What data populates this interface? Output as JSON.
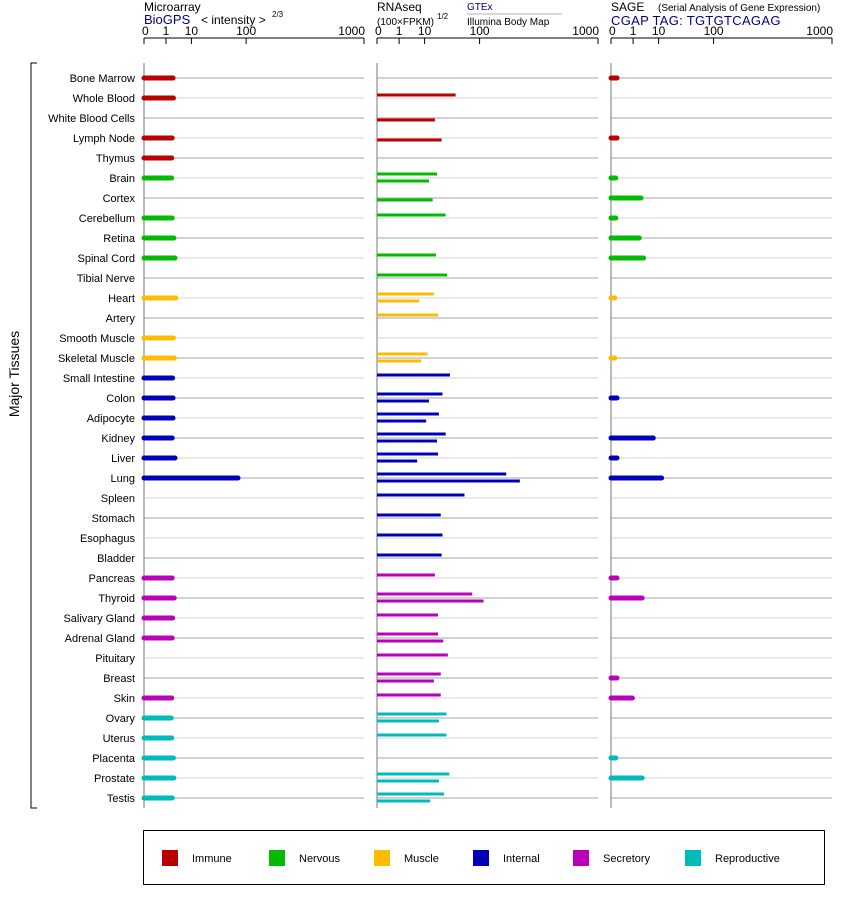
{
  "chart_data": {
    "type": "bar",
    "side_label": "Major Tissues",
    "colors": {
      "immune": "#bb0000",
      "nervous": "#00bb00",
      "muscle": "#ffbb00",
      "internal": "#0000bb",
      "secretory": "#bb00bb",
      "reproductive": "#00bbbb",
      "heading_blue": "#00008b"
    },
    "panels": [
      {
        "key": "microarray",
        "title": "Microarray",
        "subtitle_left": "BioGPS",
        "subtitle_right": "< intensity >",
        "exponent": "2/3",
        "tick_labels": [
          "0",
          "1",
          "10",
          "100",
          "1000"
        ],
        "xlim": [
          0,
          1000
        ]
      },
      {
        "key": "rnaseq",
        "title": "RNAseq",
        "unit": "(100×FPKM)",
        "exponent": "1/2",
        "legend_top": "GTEx",
        "legend_bottom": "Illumina Body Map",
        "tick_labels": [
          "0",
          "1",
          "10",
          "100",
          "1000"
        ],
        "xlim": [
          0,
          1000
        ]
      },
      {
        "key": "sage",
        "title": "SAGE",
        "note": "(Serial Analysis of Gene Expression)",
        "subtitle": "CGAP  TAG: TGTGTCAGAG",
        "tick_labels": [
          "0",
          "1",
          "10",
          "100",
          "1000"
        ],
        "xlim": [
          0,
          1000
        ]
      }
    ],
    "categories": [
      {
        "name": "Bone Marrow",
        "group": "immune",
        "microarray": 2.3,
        "gtex": null,
        "ibm": null,
        "sage": 0.02
      },
      {
        "name": "Whole Blood",
        "group": "immune",
        "microarray": 2.4,
        "gtex": 45,
        "ibm": null,
        "sage": null
      },
      {
        "name": "White Blood Cells",
        "group": "immune",
        "microarray": null,
        "gtex": null,
        "ibm": 18,
        "sage": null
      },
      {
        "name": "Lymph Node",
        "group": "immune",
        "microarray": 2.1,
        "gtex": null,
        "ibm": 25,
        "sage": 0.02
      },
      {
        "name": "Thymus",
        "group": "immune",
        "microarray": 2.0,
        "gtex": null,
        "ibm": null,
        "sage": null
      },
      {
        "name": "Brain",
        "group": "nervous",
        "microarray": 2.0,
        "gtex": 20,
        "ibm": 13,
        "sage": 0.01
      },
      {
        "name": "Cortex",
        "group": "nervous",
        "microarray": null,
        "gtex": null,
        "ibm": 16,
        "sage": 2.5
      },
      {
        "name": "Cerebellum",
        "group": "nervous",
        "microarray": 2.1,
        "gtex": 30,
        "ibm": null,
        "sage": 0.01
      },
      {
        "name": "Retina",
        "group": "nervous",
        "microarray": 2.5,
        "gtex": null,
        "ibm": null,
        "sage": 2.1
      },
      {
        "name": "Spinal Cord",
        "group": "nervous",
        "microarray": 2.8,
        "gtex": 19,
        "ibm": null,
        "sage": 3.2
      },
      {
        "name": "Tibial Nerve",
        "group": "nervous",
        "microarray": null,
        "gtex": 32,
        "ibm": null,
        "sage": null
      },
      {
        "name": "Heart",
        "group": "muscle",
        "microarray": 3.0,
        "gtex": 17,
        "ibm": 7,
        "sage": 0.005
      },
      {
        "name": "Artery",
        "group": "muscle",
        "microarray": null,
        "gtex": 21,
        "ibm": null,
        "sage": null
      },
      {
        "name": "Smooth Muscle",
        "group": "muscle",
        "microarray": 2.4,
        "gtex": null,
        "ibm": null,
        "sage": null
      },
      {
        "name": "Skeletal Muscle",
        "group": "muscle",
        "microarray": 2.6,
        "gtex": 12,
        "ibm": 8,
        "sage": 0.005
      },
      {
        "name": "Small Intestine",
        "group": "internal",
        "microarray": 2.2,
        "gtex": 36,
        "ibm": null,
        "sage": null
      },
      {
        "name": "Colon",
        "group": "internal",
        "microarray": 2.3,
        "gtex": 26,
        "ibm": 13,
        "sage": 0.02
      },
      {
        "name": "Adipocyte",
        "group": "internal",
        "microarray": 2.3,
        "gtex": 22,
        "ibm": 11,
        "sage": null
      },
      {
        "name": "Kidney",
        "group": "internal",
        "microarray": 2.1,
        "gtex": 30,
        "ibm": 20,
        "sage": 7
      },
      {
        "name": "Liver",
        "group": "internal",
        "microarray": 2.8,
        "gtex": 21,
        "ibm": 6,
        "sage": 0.02
      },
      {
        "name": "Lung",
        "group": "internal",
        "microarray": 78,
        "gtex": 200,
        "ibm": 270,
        "sage": 12
      },
      {
        "name": "Spleen",
        "group": "internal",
        "microarray": null,
        "gtex": 62,
        "ibm": null,
        "sage": null
      },
      {
        "name": "Stomach",
        "group": "internal",
        "microarray": null,
        "gtex": 24,
        "ibm": null,
        "sage": null
      },
      {
        "name": "Esophagus",
        "group": "internal",
        "microarray": null,
        "gtex": 26,
        "ibm": null,
        "sage": null
      },
      {
        "name": "Bladder",
        "group": "internal",
        "microarray": null,
        "gtex": 25,
        "ibm": null,
        "sage": null
      },
      {
        "name": "Pancreas",
        "group": "secretory",
        "microarray": 2.1,
        "gtex": 18,
        "ibm": null,
        "sage": 0.02
      },
      {
        "name": "Thyroid",
        "group": "secretory",
        "microarray": 2.6,
        "gtex": 80,
        "ibm": 112,
        "sage": 2.8
      },
      {
        "name": "Salivary Gland",
        "group": "secretory",
        "microarray": 2.2,
        "gtex": 21,
        "ibm": null,
        "sage": null
      },
      {
        "name": "Adrenal Gland",
        "group": "secretory",
        "microarray": 2.1,
        "gtex": 21,
        "ibm": 27,
        "sage": null
      },
      {
        "name": "Pituitary",
        "group": "secretory",
        "microarray": null,
        "gtex": 33,
        "ibm": null,
        "sage": null
      },
      {
        "name": "Breast",
        "group": "secretory",
        "microarray": null,
        "gtex": 24,
        "ibm": 17,
        "sage": 0.02
      },
      {
        "name": "Skin",
        "group": "secretory",
        "microarray": 2.0,
        "gtex": 24,
        "ibm": null,
        "sage": 0.9
      },
      {
        "name": "Ovary",
        "group": "reproductive",
        "microarray": 1.9,
        "gtex": 31,
        "ibm": 22,
        "sage": null
      },
      {
        "name": "Uterus",
        "group": "reproductive",
        "microarray": 2.0,
        "gtex": 31,
        "ibm": null,
        "sage": null
      },
      {
        "name": "Placenta",
        "group": "reproductive",
        "microarray": 2.4,
        "gtex": null,
        "ibm": null,
        "sage": 0.01
      },
      {
        "name": "Prostate",
        "group": "reproductive",
        "microarray": 2.5,
        "gtex": 35,
        "ibm": 22,
        "sage": 2.8
      },
      {
        "name": "Testis",
        "group": "reproductive",
        "microarray": 2.1,
        "gtex": 28,
        "ibm": 14,
        "sage": null
      }
    ],
    "legend": [
      {
        "key": "immune",
        "label": "Immune"
      },
      {
        "key": "nervous",
        "label": "Nervous"
      },
      {
        "key": "muscle",
        "label": "Muscle"
      },
      {
        "key": "internal",
        "label": "Internal"
      },
      {
        "key": "secretory",
        "label": "Secretory"
      },
      {
        "key": "reproductive",
        "label": "Reproductive"
      }
    ]
  }
}
